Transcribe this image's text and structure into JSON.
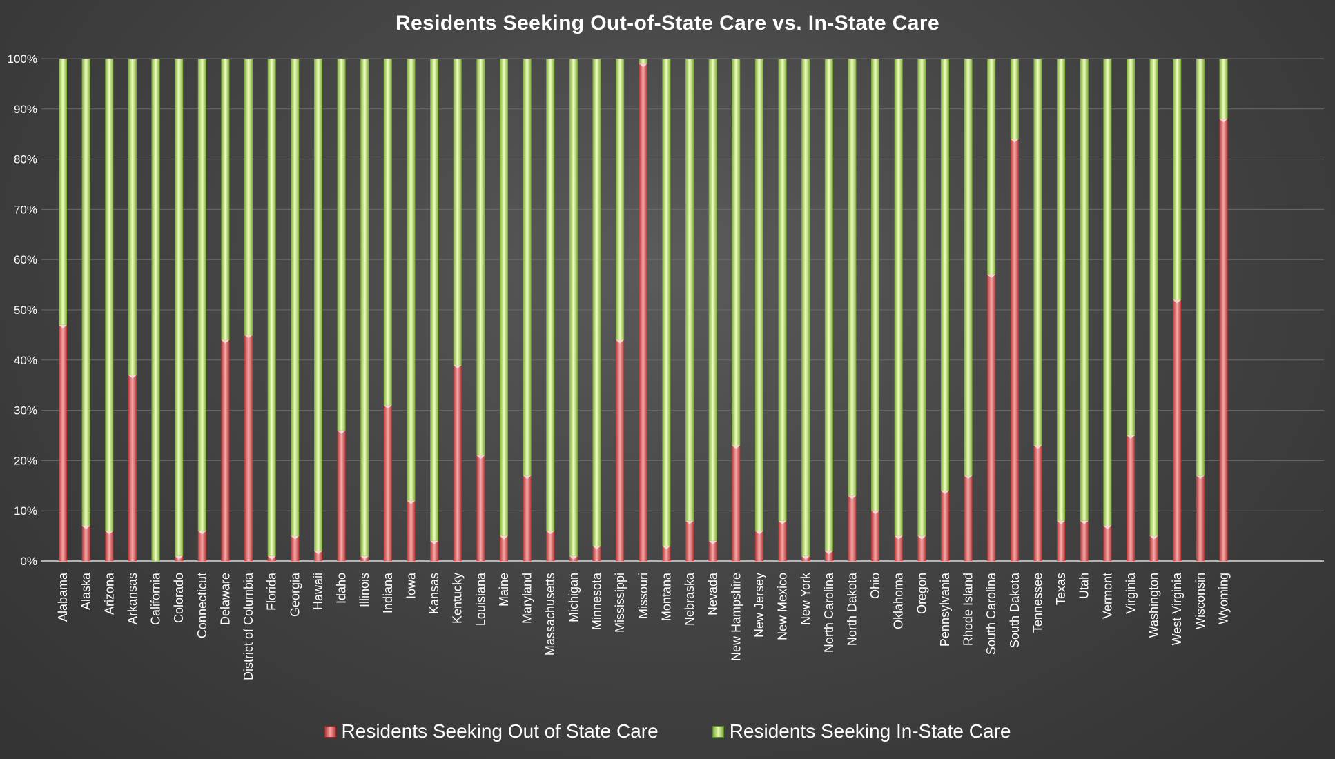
{
  "chart_data": {
    "type": "bar",
    "stacked": true,
    "title": "Residents Seeking Out-of-State Care vs. In-State Care",
    "xlabel": "",
    "ylabel": "",
    "ylim": [
      0,
      100
    ],
    "y_ticks": [
      "0%",
      "10%",
      "20%",
      "30%",
      "40%",
      "50%",
      "60%",
      "70%",
      "80%",
      "90%",
      "100%"
    ],
    "y_tick_values": [
      0,
      10,
      20,
      30,
      40,
      50,
      60,
      70,
      80,
      90,
      100
    ],
    "grid": true,
    "legend_position": "bottom",
    "categories": [
      "Alabama",
      "Alaska",
      "Arizona",
      "Arkansas",
      "California",
      "Colorado",
      "Connecticut",
      "Delaware",
      "District of Columbia",
      "Florida",
      "Georgia",
      "Hawaii",
      "Idaho",
      "Illinois",
      "Indiana",
      "Iowa",
      "Kansas",
      "Kentucky",
      "Louisiana",
      "Maine",
      "Maryland",
      "Massachusetts",
      "Michigan",
      "Minnesota",
      "Mississippi",
      "Missouri",
      "Montana",
      "Nebraska",
      "Nevada",
      "New Hampshire",
      "New Jersey",
      "New Mexico",
      "New York",
      "North Carolina",
      "North Dakota",
      "Ohio",
      "Oklahoma",
      "Oregon",
      "Pennsylvania",
      "Rhode Island",
      "South Carolina",
      "South Dakota",
      "Tennessee",
      "Texas",
      "Utah",
      "Vermont",
      "Virginia",
      "Washington",
      "West Virginia",
      "Wisconsin",
      "Wyoming"
    ],
    "series": [
      {
        "name": "Residents Seeking Out of State Care",
        "color": "#e36c6c",
        "values": [
          47,
          7,
          6,
          37,
          0,
          1,
          6,
          44,
          45,
          1,
          5,
          2,
          26,
          1,
          31,
          12,
          4,
          39,
          21,
          5,
          17,
          6,
          1,
          3,
          44,
          99,
          3,
          8,
          4,
          23,
          6,
          8,
          1,
          2,
          13,
          10,
          5,
          5,
          14,
          17,
          57,
          84,
          23,
          8,
          8,
          7,
          25,
          5,
          52,
          17,
          88
        ]
      },
      {
        "name": "Residents Seeking In-State Care",
        "color": "#b5d96b",
        "values": [
          53,
          93,
          94,
          63,
          100,
          99,
          94,
          56,
          55,
          99,
          95,
          98,
          74,
          99,
          69,
          88,
          96,
          61,
          79,
          95,
          83,
          94,
          99,
          97,
          56,
          1,
          97,
          92,
          96,
          77,
          94,
          92,
          99,
          98,
          87,
          90,
          95,
          95,
          86,
          83,
          43,
          16,
          77,
          92,
          92,
          93,
          75,
          95,
          48,
          83,
          12
        ]
      }
    ]
  },
  "colors": {
    "out_light": "#f6a9a9",
    "out_dark": "#b73535",
    "in_light": "#efffbe",
    "in_dark": "#7cab37",
    "axis_text": "#ffffff",
    "gridline": "#6a6a6a",
    "axis_line": "#d9d9d9"
  }
}
